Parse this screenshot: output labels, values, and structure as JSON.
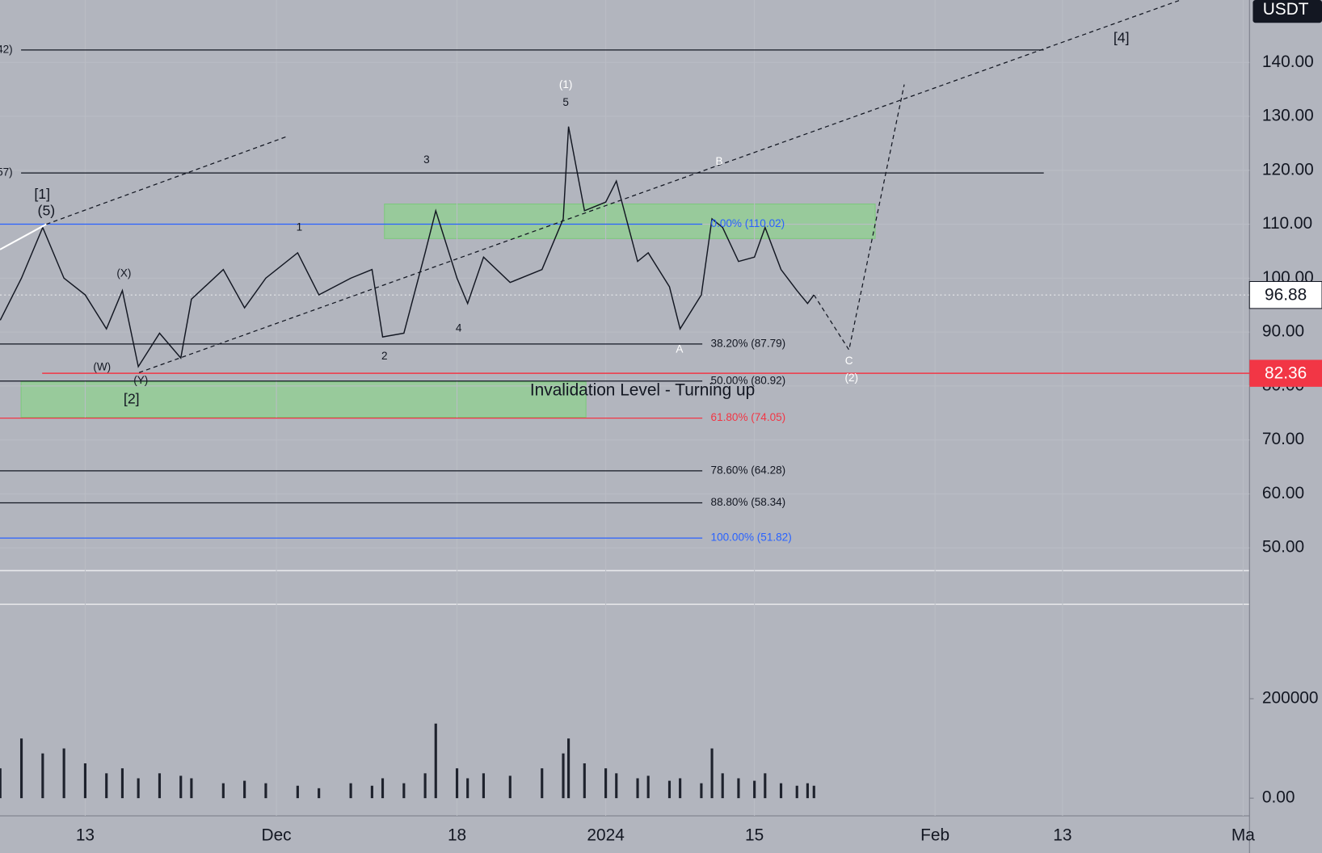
{
  "chart_data": {
    "type": "line",
    "currency": "USDT",
    "x": [
      -8,
      -6,
      -4,
      -2,
      0,
      2,
      3.5,
      5,
      7,
      9,
      10,
      13,
      15,
      17,
      20,
      22,
      25,
      27,
      28,
      30,
      32,
      33,
      35,
      36,
      37.5,
      40,
      43,
      45,
      45.5,
      47,
      49,
      50,
      52,
      53,
      55,
      56,
      58,
      59,
      60,
      61.5,
      63,
      64,
      65.5,
      67,
      68,
      68.6
    ],
    "values": [
      92.2,
      100,
      109.4,
      100,
      96.9,
      90.6,
      97.7,
      83.6,
      89.8,
      85.2,
      96.1,
      101.6,
      94.5,
      100,
      104.7,
      96.9,
      100,
      101.6,
      89.1,
      89.8,
      104.7,
      112.5,
      100,
      95.3,
      103.9,
      99.2,
      101.6,
      111,
      128.1,
      112.5,
      114.1,
      118,
      103.1,
      104.7,
      98.4,
      90.6,
      96.9,
      111,
      109.4,
      103.1,
      103.9,
      109.4,
      101.6,
      97.7,
      95.3,
      96.9
    ],
    "color": "#131722",
    "volume": {
      "values": [
        60000,
        120000,
        90000,
        100000,
        70000,
        50000,
        60000,
        40000,
        50000,
        45000,
        40000,
        30000,
        35000,
        30000,
        25000,
        20000,
        30000,
        25000,
        40000,
        30000,
        50000,
        150000,
        60000,
        40000,
        50000,
        45000,
        60000,
        90000,
        120000,
        70000,
        60000,
        50000,
        40000,
        45000,
        35000,
        40000,
        30000,
        100000,
        50000,
        40000,
        35000,
        50000,
        30000,
        25000,
        30000,
        25000
      ],
      "color": "#1e222d",
      "ylim": [
        0,
        384700
      ],
      "yticks": [
        {
          "value": 0,
          "label": "0.00"
        },
        200000
      ]
    },
    "projection": {
      "x": [
        68.6,
        71.9,
        77.1
      ],
      "values": [
        96.9,
        86.7,
        135.9
      ]
    },
    "xlim": [
      -8.02,
      109.6
    ],
    "xticks": [
      {
        "value": 0,
        "label": "13"
      },
      {
        "value": 18,
        "label": "Dec"
      },
      {
        "value": 35,
        "label": "18"
      },
      {
        "value": 49,
        "label": "2024"
      },
      {
        "value": 63,
        "label": "15"
      },
      {
        "value": 80,
        "label": "Feb"
      },
      {
        "value": 92,
        "label": "13"
      },
      {
        "value": 109,
        "label": "Ma"
      }
    ],
    "ylim": [
      45.78,
      151.56
    ],
    "yticks": [
      {
        "value": 50,
        "label": "50.00"
      },
      {
        "value": 60,
        "label": "60.00"
      },
      {
        "value": 70,
        "label": "70.00"
      },
      {
        "value": 80,
        "label": "80.00"
      },
      {
        "value": 90,
        "label": "90.00"
      },
      {
        "value": 100,
        "label": "100.00"
      },
      {
        "value": 110,
        "label": "110.00"
      },
      {
        "value": 120,
        "label": "120.00"
      },
      {
        "value": 130,
        "label": "130.00"
      },
      {
        "value": 140,
        "label": "140.00"
      }
    ],
    "fib_levels": [
      {
        "label": "0.00% (110.02)",
        "value": 110.02,
        "color": "#2962ff"
      },
      {
        "label": "38.20% (87.79)",
        "value": 87.79,
        "color": "#131722"
      },
      {
        "label": "50.00% (80.92)",
        "value": 80.92,
        "color": "#131722"
      },
      {
        "label": "61.80% (74.05)",
        "value": 74.05,
        "color": "#f23645"
      },
      {
        "label": "78.60% (64.28)",
        "value": 64.28,
        "color": "#131722"
      },
      {
        "label": "88.80% (58.34)",
        "value": 58.34,
        "color": "#131722"
      },
      {
        "label": "100.00% (51.82)",
        "value": 51.82,
        "color": "#2962ff"
      }
    ],
    "side_levels": [
      {
        "label": "42)",
        "value": 142.3
      },
      {
        "label": "57)",
        "value": 119.5
      }
    ],
    "last_price": 96.88,
    "invalidation": {
      "value": 82.36,
      "text": "Invalidation Level - Turning up"
    },
    "wave_labels": [
      "[1]",
      "(5)",
      "(X)",
      "(W)",
      "(Y)",
      "[2]",
      "1",
      "2",
      "3",
      "4",
      "5",
      "(1)",
      "B",
      "A",
      "C",
      "(2)",
      "[4]"
    ]
  }
}
